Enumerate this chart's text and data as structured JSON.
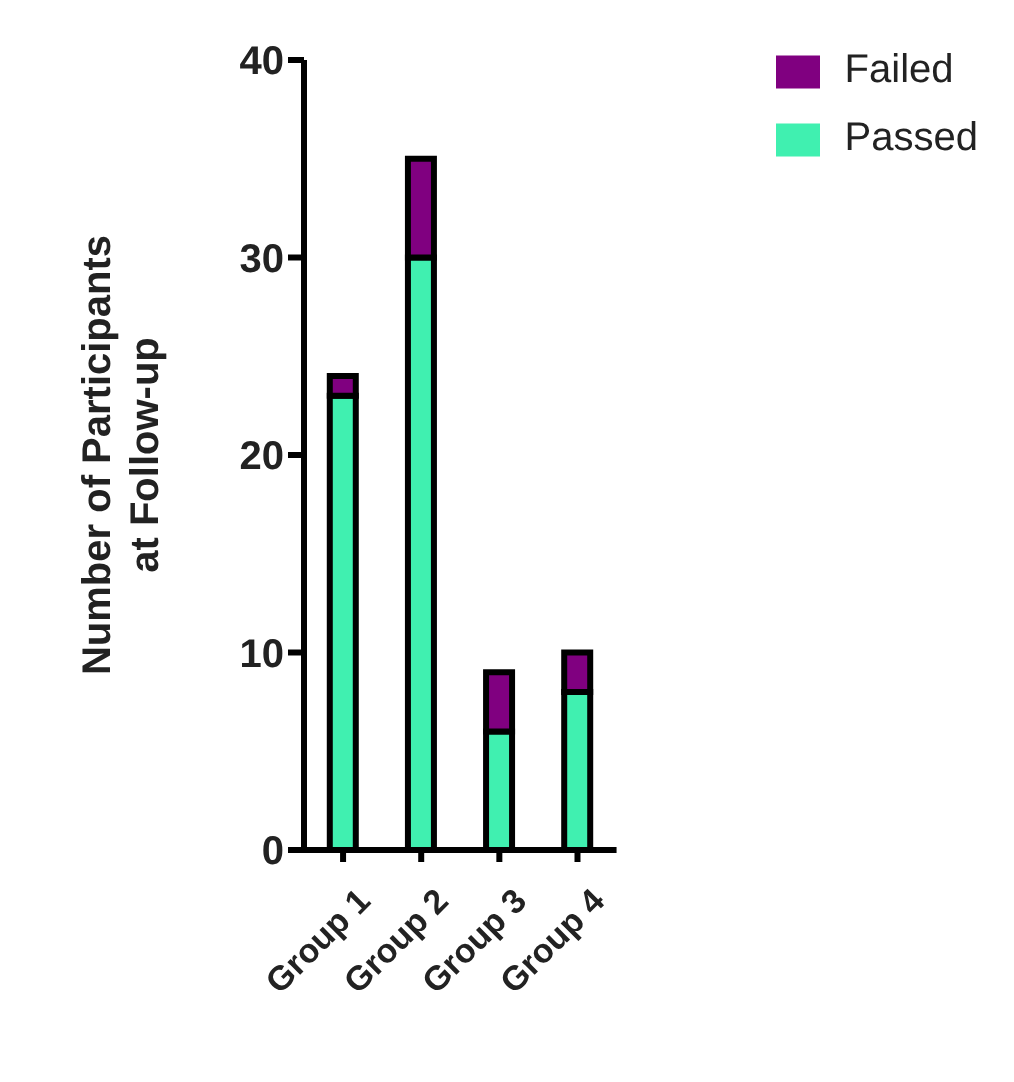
{
  "chart_data": {
    "type": "bar",
    "stacked": true,
    "ylabel": "Number of Participants\nat Follow-up",
    "categories": [
      "Group 1",
      "Group 2",
      "Group 3",
      "Group 4"
    ],
    "series": [
      {
        "name": "Passed",
        "color": "#40f0b0",
        "values": [
          23,
          30,
          6,
          8
        ]
      },
      {
        "name": "Failed",
        "color": "#800080",
        "values": [
          1,
          5,
          3,
          2
        ]
      }
    ],
    "ylim": [
      0,
      40
    ],
    "yticks": [
      0,
      10,
      20,
      30,
      40
    ],
    "grid": false,
    "legend": "top right"
  }
}
